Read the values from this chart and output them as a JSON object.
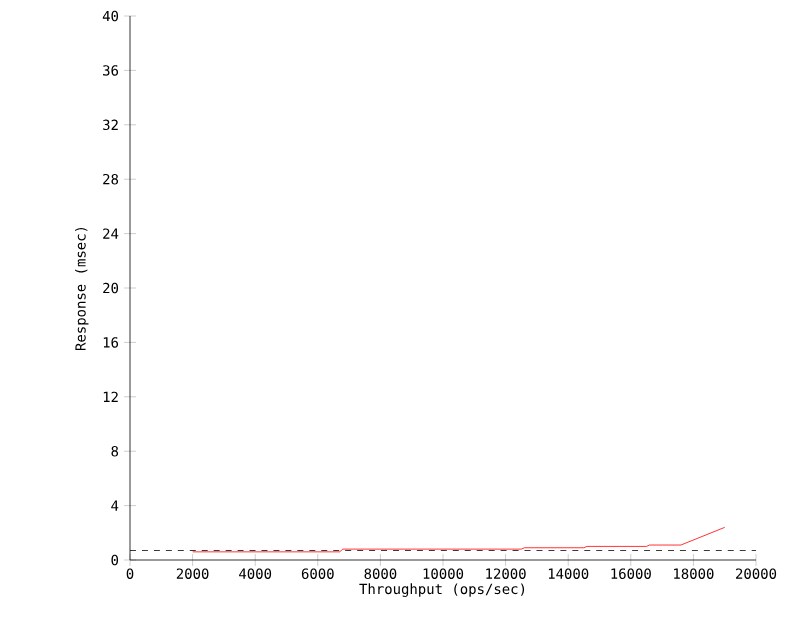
{
  "chart_data": {
    "type": "line",
    "xlabel": "Throughput (ops/sec)",
    "ylabel": "Response (msec)",
    "xlim": [
      0,
      20000
    ],
    "ylim": [
      0,
      40
    ],
    "xticks": [
      0,
      2000,
      4000,
      6000,
      8000,
      10000,
      12000,
      14000,
      16000,
      18000,
      20000
    ],
    "yticks": [
      0,
      4,
      8,
      12,
      16,
      20,
      24,
      28,
      32,
      36,
      40
    ],
    "grid": false,
    "marker": "none",
    "line_style": "solid",
    "series": [
      {
        "color": "#ff0000",
        "x": [
          2000,
          6700,
          6800,
          12500,
          12600,
          14500,
          14600,
          16500,
          16600,
          17600,
          19000
        ],
        "values": [
          0.6,
          0.6,
          0.8,
          0.8,
          0.9,
          0.9,
          1.0,
          1.0,
          1.1,
          1.1,
          2.4
        ]
      }
    ],
    "ref_lines": [
      {
        "axis": "y",
        "value": 0.7,
        "color": "#000000",
        "line_style": "dashed"
      }
    ]
  }
}
